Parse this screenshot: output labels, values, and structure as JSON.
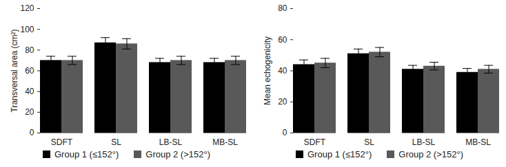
{
  "chart_data": [
    {
      "type": "bar",
      "y_label": "Transversal area (cm²)",
      "categories": [
        "SDFT",
        "SL",
        "LB-SL",
        "MB-SL"
      ],
      "series": [
        {
          "name": "Group 1 (≤152°)",
          "color": "#000000",
          "values": [
            70,
            87,
            68,
            68
          ],
          "errors": [
            4,
            5,
            4,
            4
          ]
        },
        {
          "name": "Group 2 (>152°)",
          "color": "#595959",
          "values": [
            70,
            86,
            70,
            70
          ],
          "errors": [
            4,
            5,
            4,
            4
          ]
        }
      ],
      "ylim": [
        0,
        120
      ],
      "yticks": [
        0,
        20,
        40,
        60,
        80,
        100,
        120
      ],
      "grid": false,
      "legend": "bottom"
    },
    {
      "type": "bar",
      "y_label": "Mean echogenicity",
      "categories": [
        "SDFT",
        "SL",
        "LB-SL",
        "MB-SL"
      ],
      "series": [
        {
          "name": "Group 1 (≤152°)",
          "color": "#000000",
          "values": [
            44,
            51,
            41,
            39
          ],
          "errors": [
            3,
            3,
            2.5,
            2.5
          ]
        },
        {
          "name": "Group 2 (>152°)",
          "color": "#595959",
          "values": [
            45,
            52,
            43,
            41
          ],
          "errors": [
            3,
            3,
            2.5,
            2.5
          ]
        }
      ],
      "ylim": [
        0,
        80
      ],
      "yticks": [
        0,
        20,
        40,
        60,
        80
      ],
      "grid": false,
      "legend": "bottom"
    }
  ]
}
